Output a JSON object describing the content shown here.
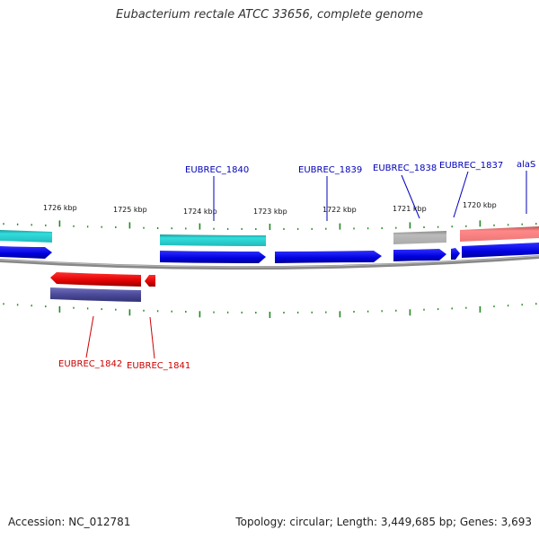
{
  "header": {
    "title": "Eubacterium rectale ATCC 33656, complete genome"
  },
  "footer": {
    "accession": "Accession: NC_012781",
    "stats": "Topology: circular; Length: 3,449,685 bp; Genes: 3,693"
  },
  "ruler": {
    "ticks": [
      {
        "label": "1726 kbp",
        "kbp": 1726
      },
      {
        "label": "1725 kbp",
        "kbp": 1725
      },
      {
        "label": "1724 kbp",
        "kbp": 1724
      },
      {
        "label": "1723 kbp",
        "kbp": 1723
      },
      {
        "label": "1722 kbp",
        "kbp": 1722
      },
      {
        "label": "1721 kbp",
        "kbp": 1721
      },
      {
        "label": "1720 kbp",
        "kbp": 1720
      }
    ]
  },
  "genes_forward_labels": [
    {
      "label": "EUBREC_1840",
      "color": "#0000bb"
    },
    {
      "label": "EUBREC_1839",
      "color": "#0000bb"
    },
    {
      "label": "EUBREC_1838",
      "color": "#0000bb"
    },
    {
      "label": "EUBREC_1837",
      "color": "#0000bb"
    },
    {
      "label": "alaS",
      "color": "#0000bb"
    }
  ],
  "genes_reverse_labels": [
    {
      "label": "EUBREC_1842",
      "color": "#cc0000"
    },
    {
      "label": "EUBREC_1841",
      "color": "#cc0000"
    }
  ],
  "colors": {
    "cds_forward": "#0000ee",
    "cds_reverse": "#ee0000",
    "cog_cyan": "#22cccc",
    "cog_gray": "#aaaaaa",
    "cog_pink": "#ee7777",
    "cog_navy": "#4a4a99",
    "backbone": "#888888",
    "tick": "#228822"
  }
}
